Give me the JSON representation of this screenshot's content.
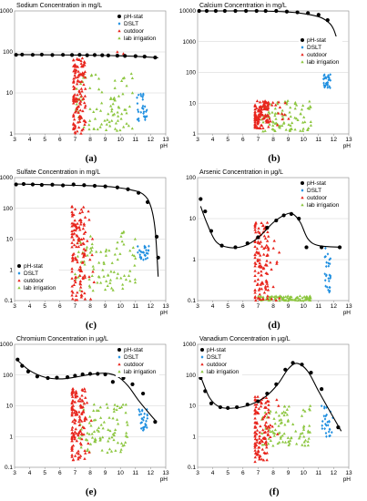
{
  "figure": {
    "legend_labels": [
      "pH-stat",
      "DSLT",
      "outdoor",
      "lab irrigation"
    ],
    "colors": {
      "ph_stat": "#000000",
      "dslt": "#1f8fe0",
      "outdoor": "#e8251d",
      "lab": "#8cc63f"
    }
  },
  "chart_data": [
    {
      "type": "scatter",
      "letter": "(a)",
      "title": "Sodium Concentration in mg/L",
      "xlabel": "pH",
      "xlim": [
        3,
        13
      ],
      "xticks": [
        3,
        4,
        5,
        6,
        7,
        8,
        9,
        10,
        11,
        12,
        13
      ],
      "yscale": "log",
      "ylim": [
        1,
        1000
      ],
      "yticks": [
        1,
        10,
        100,
        1000
      ],
      "legend": "top-right",
      "ph_stat": {
        "x": [
          3.1,
          3.5,
          4.2,
          4.8,
          5.5,
          6.2,
          6.8,
          7.3,
          7.8,
          8.3,
          8.8,
          9.2,
          9.8,
          10.3,
          11.0,
          11.6,
          12.3
        ],
        "y": [
          85,
          86,
          85,
          86,
          84,
          85,
          84,
          85,
          83,
          84,
          83,
          82,
          81,
          80,
          79,
          77,
          73
        ]
      },
      "fit": {
        "x": [
          3,
          5,
          7,
          9,
          11,
          12.5
        ],
        "y": [
          86,
          85,
          84,
          82,
          78,
          72
        ]
      },
      "dslt": {
        "x_range": [
          11.1,
          11.8
        ],
        "y_range": [
          2,
          10
        ]
      },
      "outdoor": {
        "x_range": [
          6.9,
          7.7
        ],
        "y_range": [
          1,
          70
        ],
        "extra": [
          {
            "x": 9.8,
            "y": 100
          },
          {
            "x": 10.2,
            "y": 90
          }
        ]
      },
      "lab": {
        "x_range": [
          7.0,
          10.8
        ],
        "y_range": [
          1.2,
          30
        ]
      }
    },
    {
      "type": "scatter",
      "letter": "(b)",
      "title": "Calcium Concentration in mg/L",
      "xlabel": "pH",
      "xlim": [
        3,
        13
      ],
      "xticks": [
        3,
        4,
        5,
        6,
        7,
        8,
        9,
        10,
        11,
        12,
        13
      ],
      "yscale": "log",
      "ylim": [
        1,
        10000
      ],
      "yticks": [
        1,
        10,
        100,
        1000,
        10000
      ],
      "legend": "right",
      "ph_stat": {
        "x": [
          3.1,
          3.6,
          4.2,
          4.8,
          5.5,
          6.2,
          6.9,
          7.5,
          8.2,
          8.9,
          9.6,
          10.3,
          11.0,
          11.6,
          12.4
        ],
        "y": [
          12000,
          12000,
          11500,
          11500,
          11000,
          11000,
          10500,
          10500,
          10000,
          9500,
          9000,
          8500,
          7500,
          5000,
          500
        ]
      },
      "fit": {
        "x": [
          3,
          5,
          7,
          9,
          10,
          11,
          11.6,
          12,
          12.4
        ],
        "y": [
          12500,
          11500,
          10500,
          9200,
          8200,
          6500,
          4500,
          2500,
          600
        ]
      },
      "dslt": {
        "x_range": [
          11.3,
          11.8
        ],
        "y_range": [
          30,
          90
        ]
      },
      "outdoor": {
        "x_range": [
          6.8,
          10.9
        ],
        "y_range": [
          1.5,
          12
        ]
      },
      "lab": {
        "x_range": [
          7.2,
          10.5
        ],
        "y_range": [
          1.2,
          12
        ]
      }
    },
    {
      "type": "scatter",
      "letter": "(c)",
      "title": "Sulfate Concentration in mg/L",
      "xlabel": "pH",
      "xlim": [
        3,
        13
      ],
      "xticks": [
        3,
        4,
        5,
        6,
        7,
        8,
        9,
        10,
        11,
        12,
        13
      ],
      "yscale": "log",
      "ylim": [
        0.1,
        1000
      ],
      "yticks": [
        0.1,
        1,
        10,
        100,
        1000
      ],
      "legend": "bottom-left",
      "ph_stat": {
        "x": [
          3.1,
          3.6,
          4.2,
          4.8,
          5.5,
          6.2,
          6.9,
          7.6,
          8.3,
          9.0,
          9.8,
          10.5,
          11.2,
          11.8,
          12.4,
          12.5
        ],
        "y": [
          600,
          620,
          600,
          580,
          590,
          560,
          600,
          570,
          540,
          520,
          480,
          420,
          320,
          160,
          12,
          2.5
        ]
      },
      "fit": {
        "x": [
          3,
          5,
          7,
          9,
          10.5,
          11.5,
          12,
          12.3,
          12.5
        ],
        "y": [
          620,
          590,
          560,
          520,
          420,
          290,
          120,
          20,
          0.6
        ]
      },
      "dslt": {
        "x_range": [
          11.1,
          11.9
        ],
        "y_range": [
          2,
          6
        ]
      },
      "outdoor": {
        "x_range": [
          6.8,
          9.2
        ],
        "y_range": [
          0.1,
          120
        ]
      },
      "lab": {
        "x_range": [
          6.9,
          11.0
        ],
        "y_range": [
          0.2,
          20
        ]
      }
    },
    {
      "type": "scatter",
      "letter": "(d)",
      "title": "Arsenic Concentration in µg/L",
      "xlabel": "pH",
      "xlim": [
        3,
        13
      ],
      "xticks": [
        3,
        4,
        5,
        6,
        7,
        8,
        9,
        10,
        11,
        12,
        13
      ],
      "yscale": "log",
      "ylim": [
        0.1,
        100
      ],
      "yticks": [
        0.1,
        1,
        10,
        100
      ],
      "legend": "top-right",
      "ph_stat": {
        "x": [
          3.2,
          3.5,
          3.9,
          4.6,
          5.5,
          6.3,
          7.0,
          7.6,
          8.2,
          8.7,
          9.2,
          9.7,
          10.2,
          11.2,
          12.4
        ],
        "y": [
          30,
          15,
          5,
          2.2,
          2,
          2.5,
          3.5,
          6,
          9,
          12,
          13,
          10,
          2,
          2,
          2
        ]
      },
      "fit": {
        "x": [
          3.2,
          3.6,
          4.2,
          5,
          6,
          7,
          8,
          8.8,
          9.3,
          9.8,
          10.3,
          11,
          12.5
        ],
        "y": [
          20,
          8,
          2.8,
          2,
          2.1,
          3.4,
          8,
          12.5,
          13,
          8,
          3.2,
          2.2,
          2
        ]
      },
      "dslt": {
        "x_range": [
          11.4,
          11.8
        ],
        "y_range": [
          0.15,
          2
        ]
      },
      "outdoor": {
        "x_range": [
          6.8,
          10.0
        ],
        "y_range": [
          0.1,
          8
        ]
      },
      "lab": {
        "x_range": [
          7.0,
          10.5
        ],
        "y_range": [
          0.1,
          0.13
        ]
      }
    },
    {
      "type": "scatter",
      "letter": "(e)",
      "title": "Chromium Concentration in µg/L",
      "xlabel": "pH",
      "xlim": [
        3,
        13
      ],
      "xticks": [
        3,
        4,
        5,
        6,
        7,
        8,
        9,
        10,
        11,
        12,
        13
      ],
      "yscale": "log",
      "ylim": [
        0.1,
        1000
      ],
      "yticks": [
        0.1,
        1,
        10,
        100,
        1000
      ],
      "legend": "top-right",
      "ph_stat": {
        "x": [
          3.2,
          3.5,
          3.9,
          4.5,
          5.2,
          5.8,
          6.5,
          7.0,
          7.5,
          8.0,
          8.5,
          9.0,
          9.5,
          10.2,
          10.8,
          11.5,
          12.3
        ],
        "y": [
          320,
          200,
          130,
          90,
          80,
          82,
          85,
          95,
          105,
          110,
          110,
          105,
          60,
          80,
          50,
          25,
          3
        ]
      },
      "fit": {
        "x": [
          3.2,
          4,
          5,
          6,
          7,
          8,
          9,
          9.8,
          10.5,
          11.2,
          12,
          12.4
        ],
        "y": [
          300,
          140,
          85,
          75,
          85,
          105,
          115,
          90,
          45,
          15,
          5,
          3
        ]
      },
      "dslt": {
        "x_range": [
          11.2,
          11.8
        ],
        "y_range": [
          1.5,
          8
        ]
      },
      "outdoor": {
        "x_range": [
          6.8,
          9.0
        ],
        "y_range": [
          0.15,
          40
        ]
      },
      "lab": {
        "x_range": [
          7.2,
          10.5
        ],
        "y_range": [
          0.3,
          12
        ]
      }
    },
    {
      "type": "scatter",
      "letter": "(f)",
      "title": "Vanadium Concentration in µg/L",
      "xlabel": "pH",
      "xlim": [
        3,
        13
      ],
      "xticks": [
        3,
        4,
        5,
        6,
        7,
        8,
        9,
        10,
        11,
        12,
        13
      ],
      "yscale": "log",
      "ylim": [
        0.1,
        1000
      ],
      "yticks": [
        0.1,
        1,
        10,
        100,
        1000
      ],
      "legend": "top-left",
      "ph_stat": {
        "x": [
          3.2,
          3.5,
          3.9,
          4.5,
          5.0,
          5.6,
          6.3,
          7.0,
          7.6,
          8.2,
          8.8,
          9.3,
          9.9,
          10.5,
          11.2,
          12.3
        ],
        "y": [
          80,
          30,
          12,
          9,
          8.5,
          9,
          11,
          14,
          25,
          50,
          150,
          250,
          220,
          120,
          35,
          2
        ]
      },
      "fit": {
        "x": [
          3.2,
          3.8,
          4.5,
          5.5,
          6.5,
          7.5,
          8.3,
          9,
          9.6,
          10.3,
          11,
          11.8,
          12.5
        ],
        "y": [
          90,
          18,
          9,
          8.5,
          11,
          20,
          50,
          160,
          240,
          130,
          30,
          6,
          1.5
        ]
      },
      "dslt": {
        "x_range": [
          11.2,
          12.0
        ],
        "y_range": [
          1,
          10
        ]
      },
      "outdoor": {
        "x_range": [
          6.8,
          9.5
        ],
        "y_range": [
          0.15,
          20
        ]
      },
      "lab": {
        "x_range": [
          7.2,
          10.5
        ],
        "y_range": [
          0.5,
          10
        ]
      }
    }
  ]
}
